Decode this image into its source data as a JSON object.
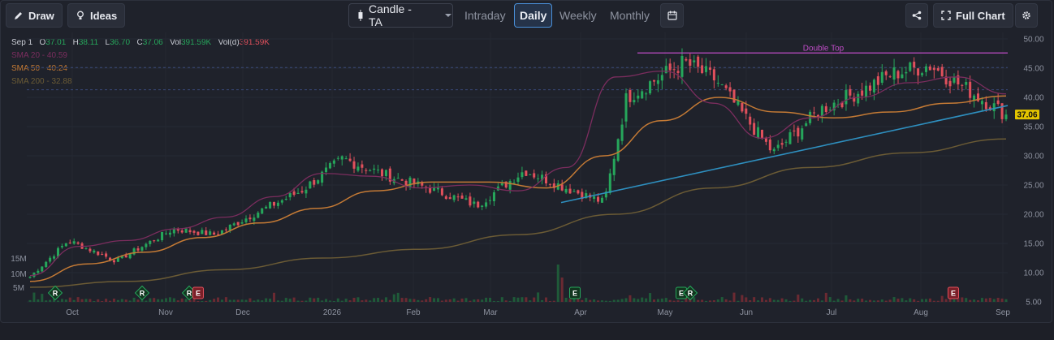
{
  "toolbar": {
    "draw_label": "Draw",
    "ideas_label": "Ideas",
    "chart_type_label": "Candle - TA",
    "periods": [
      "Intraday",
      "Daily",
      "Weekly",
      "Monthly"
    ],
    "active_period": "Daily",
    "full_chart_label": "Full Chart"
  },
  "legend": {
    "date": "Sep 1",
    "open_key": "O",
    "open": "37.01",
    "high_key": "H",
    "high": "38.11",
    "low_key": "L",
    "low": "36.70",
    "close_key": "C",
    "close": "37.06",
    "vol_key": "Vol",
    "vol": "391.59K",
    "vold_key": "Vol(d)",
    "vold": "391.59K",
    "sma20_label": "SMA 20",
    "sma20": "40.59",
    "sma50_label": "SMA 50",
    "sma50": "40.24",
    "sma200_label": "SMA 200",
    "sma200": "32.88"
  },
  "colors": {
    "up": "#26a65b",
    "down": "#e0505c",
    "sma20": "#7b2d5e",
    "sma50": "#c47a35",
    "sma200": "#6b5b35",
    "trendline": "#2e8fbf",
    "double_top": "#c04dc8",
    "price_tag": "#e3c400"
  },
  "chart_data": {
    "type": "candlestick",
    "x_ticks": [
      "Oct",
      "Nov",
      "Dec",
      "2026",
      "Feb",
      "Mar",
      "Apr",
      "May",
      "Jun",
      "Jul",
      "Aug",
      "Sep"
    ],
    "y_ticks": [
      "50.00",
      "45.00",
      "40.00",
      "35.00",
      "30.00",
      "25.00",
      "20.00",
      "15.00",
      "10.00",
      "5.00"
    ],
    "ylim": [
      5,
      50
    ],
    "volume_ticks": [
      "15M",
      "10M",
      "5M"
    ],
    "last_price": "37.06",
    "annotations": [
      {
        "text": "Double Top",
        "price": 47.6
      }
    ],
    "events": [
      {
        "type": "R",
        "month": "Oct"
      },
      {
        "type": "R",
        "month": "Nov"
      },
      {
        "type": "R",
        "month": "Nov"
      },
      {
        "type": "E",
        "month": "Nov"
      },
      {
        "type": "E",
        "month": "Apr"
      },
      {
        "type": "E",
        "month": "May"
      },
      {
        "type": "R",
        "month": "May"
      },
      {
        "type": "E",
        "month": "Aug"
      }
    ],
    "price_path": [
      {
        "month": "Sep",
        "close": 9.3
      },
      {
        "month": "Oct",
        "close": 15.5
      },
      {
        "month": "Oct",
        "close": 12.0
      },
      {
        "month": "Nov",
        "close": 17.5
      },
      {
        "month": "Nov",
        "close": 16.5
      },
      {
        "month": "Dec",
        "close": 20.0
      },
      {
        "month": "Dec",
        "close": 24.0
      },
      {
        "month": "Dec",
        "close": 29.5
      },
      {
        "month": "2026",
        "close": 27.0
      },
      {
        "month": "Feb",
        "close": 23.5
      },
      {
        "month": "Feb",
        "close": 21.5
      },
      {
        "month": "Mar",
        "close": 27.5
      },
      {
        "month": "Mar",
        "close": 24.5
      },
      {
        "month": "Apr",
        "close": 22.0
      },
      {
        "month": "Apr",
        "close": 40.0
      },
      {
        "month": "May",
        "close": 46.0
      },
      {
        "month": "May",
        "close": 43.0
      },
      {
        "month": "Jun",
        "close": 36.0
      },
      {
        "month": "Jun",
        "close": 30.5
      },
      {
        "month": "Jul",
        "close": 38.0
      },
      {
        "month": "Jul",
        "close": 41.5
      },
      {
        "month": "Aug",
        "close": 44.0
      },
      {
        "month": "Aug",
        "close": 45.5
      },
      {
        "month": "Sep",
        "close": 37.06
      }
    ],
    "sma20_path": [
      9.5,
      14.5,
      15.5,
      17.5,
      19.5,
      23.0,
      27.0,
      26.5,
      24.5,
      25.0,
      24.0,
      28.0,
      43.5,
      44.5,
      39.0,
      33.0,
      36.5,
      40.0,
      42.5,
      43.5,
      40.59
    ],
    "sma50_path": [
      8.5,
      11.5,
      13.5,
      16.0,
      18.5,
      21.0,
      24.0,
      25.5,
      25.5,
      24.5,
      30.0,
      36.0,
      40.0,
      37.5,
      36.5,
      37.5,
      39.0,
      40.24
    ],
    "sma200_path": [
      7.5,
      8.5,
      10.5,
      12.5,
      14.0,
      16.5,
      20.0,
      24.5,
      28.0,
      30.5,
      32.88
    ],
    "trendline": {
      "from": 22.0,
      "to": 38.6
    },
    "volume": "small bars with a spike near Apr (~13M)"
  }
}
